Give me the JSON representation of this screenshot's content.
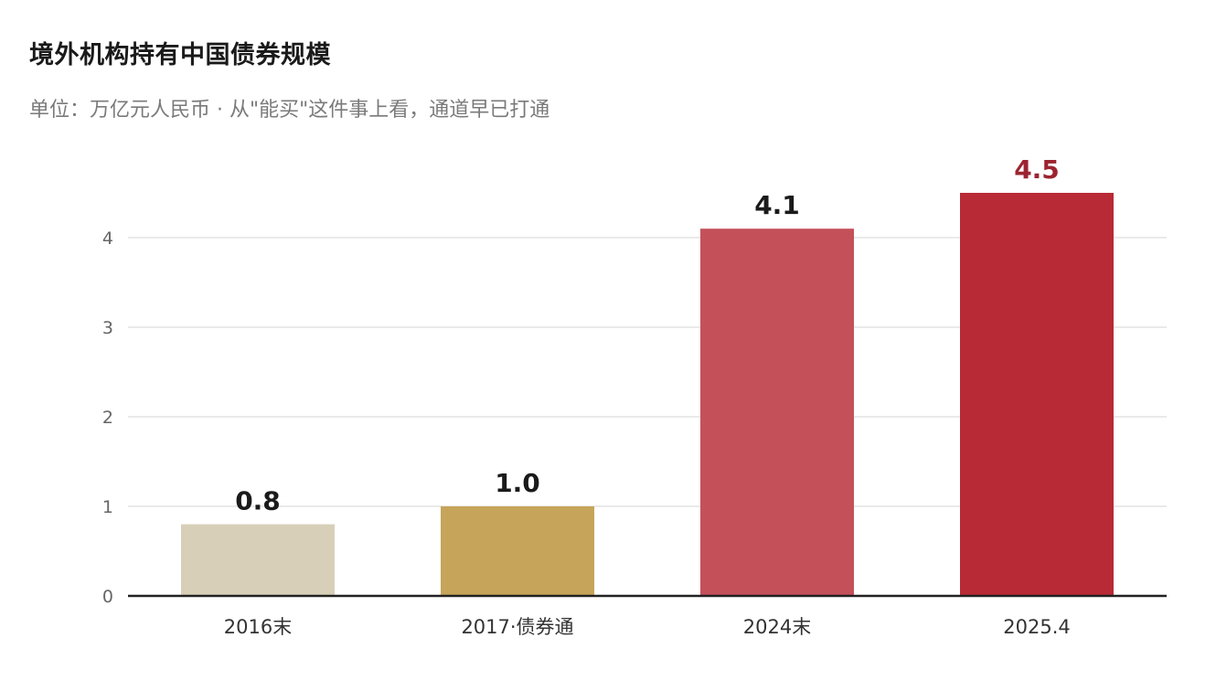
{
  "header": {
    "title": "境外机构持有中国债券规模",
    "subtitle": "单位：万亿元人民币 · 从\"能买\"这件事上看，通道早已打通"
  },
  "chart_data": {
    "type": "bar",
    "title": "境外机构持有中国债券规模",
    "subtitle": "单位：万亿元人民币 · 从\"能买\"这件事上看，通道早已打通",
    "categories": [
      "2016末",
      "2017·债券通",
      "2024末",
      "2025.4"
    ],
    "values": [
      0.8,
      1.0,
      4.1,
      4.5
    ],
    "value_labels": [
      "0.8",
      "1.0",
      "4.1",
      "4.5"
    ],
    "bar_colors": [
      "#d8cfb9",
      "#c6a45a",
      "#c4505a",
      "#b82a35"
    ],
    "value_label_colors": [
      "#1a1a1a",
      "#1a1a1a",
      "#1a1a1a",
      "#9b2430"
    ],
    "ylim": [
      0,
      4.5
    ],
    "yticks": [
      "0",
      "1",
      "2",
      "3",
      "4"
    ],
    "grid": true,
    "xlabel": "",
    "ylabel": ""
  }
}
